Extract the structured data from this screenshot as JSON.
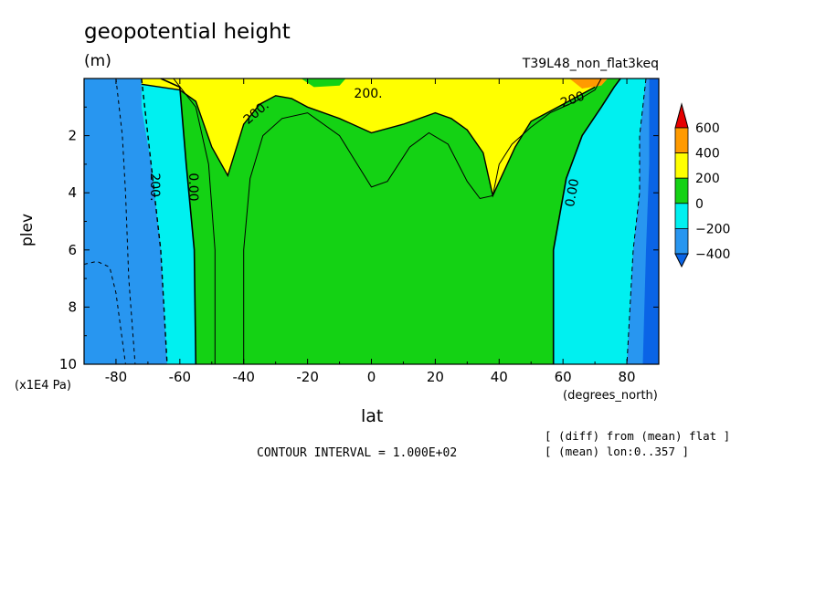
{
  "header": {
    "title": "geopotential height",
    "units": "(m)",
    "dataset": "T39L48_non_flat3keq"
  },
  "footer": {
    "contour_interval": "CONTOUR INTERVAL = 1.000E+02",
    "note_diff": "[ (diff) from (mean) flat ]",
    "note_mean": "[ (mean) lon:0..357 ]"
  },
  "colors": {
    "c_below_400": "#0a64e6",
    "c_400_200": "#2896f0",
    "c_200_0": "#00f0f0",
    "c_0_200": "#14d214",
    "c_200_400": "#ffff00",
    "c_400_600": "#ff9a00",
    "c_above_600": "#e60000"
  },
  "chart_data": {
    "type": "heatmap",
    "title": "geopotential height",
    "units": "(m)",
    "xlabel": "lat",
    "xunits": "(degrees_north)",
    "ylabel": "plev",
    "yunits": "(x1E4 Pa)",
    "xlim": [
      -90,
      90
    ],
    "ylim": [
      10,
      0
    ],
    "x_ticks": [
      -80,
      -60,
      -40,
      -20,
      0,
      20,
      40,
      60,
      80
    ],
    "y_ticks": [
      2,
      4,
      6,
      8,
      10
    ],
    "contour_interval": 100,
    "colorbar": {
      "levels": [
        -400,
        -200,
        0,
        200,
        400,
        600
      ],
      "labels": [
        "600",
        "400",
        "200",
        "0",
        "−200",
        "−400"
      ]
    },
    "contour_labels": [
      "200.",
      "200.",
      "200",
      "200.",
      "0.00",
      "0.00"
    ],
    "region_boundaries": {
      "lat": [
        -90,
        -85,
        -80,
        -75,
        -70,
        -65,
        -60,
        -55,
        -50,
        -45,
        -40,
        -35,
        -30,
        -25,
        -20,
        -15,
        -10,
        -5,
        0,
        5,
        10,
        15,
        20,
        25,
        30,
        35,
        40,
        45,
        50,
        55,
        60,
        65,
        70,
        75,
        80,
        85,
        90
      ],
      "zero_line_west_plev": [
        0.0,
        10.0
      ],
      "zero_line_west_lat": [
        -66,
        -55
      ],
      "zero_line_east_plev": [
        0.0,
        10.0
      ],
      "zero_line_east_lat": [
        78,
        57
      ],
      "plus200_plev_lower_edge": [
        0.2,
        0.3,
        0.4,
        0.8,
        2.4,
        3.4,
        1.6,
        0.9,
        0.6,
        0.7,
        1.0,
        1.4,
        1.9,
        1.6,
        1.2,
        1.4,
        1.8,
        2.6,
        4.1,
        2.4,
        1.5,
        1.2,
        0.9,
        0.6,
        0.3
      ],
      "plus200_lat": [
        -72,
        -66,
        -60,
        -55,
        -50,
        -45,
        -40,
        -35,
        -30,
        -25,
        -20,
        -10,
        0,
        10,
        20,
        25,
        30,
        35,
        38,
        45,
        50,
        55,
        60,
        65,
        70
      ]
    }
  }
}
